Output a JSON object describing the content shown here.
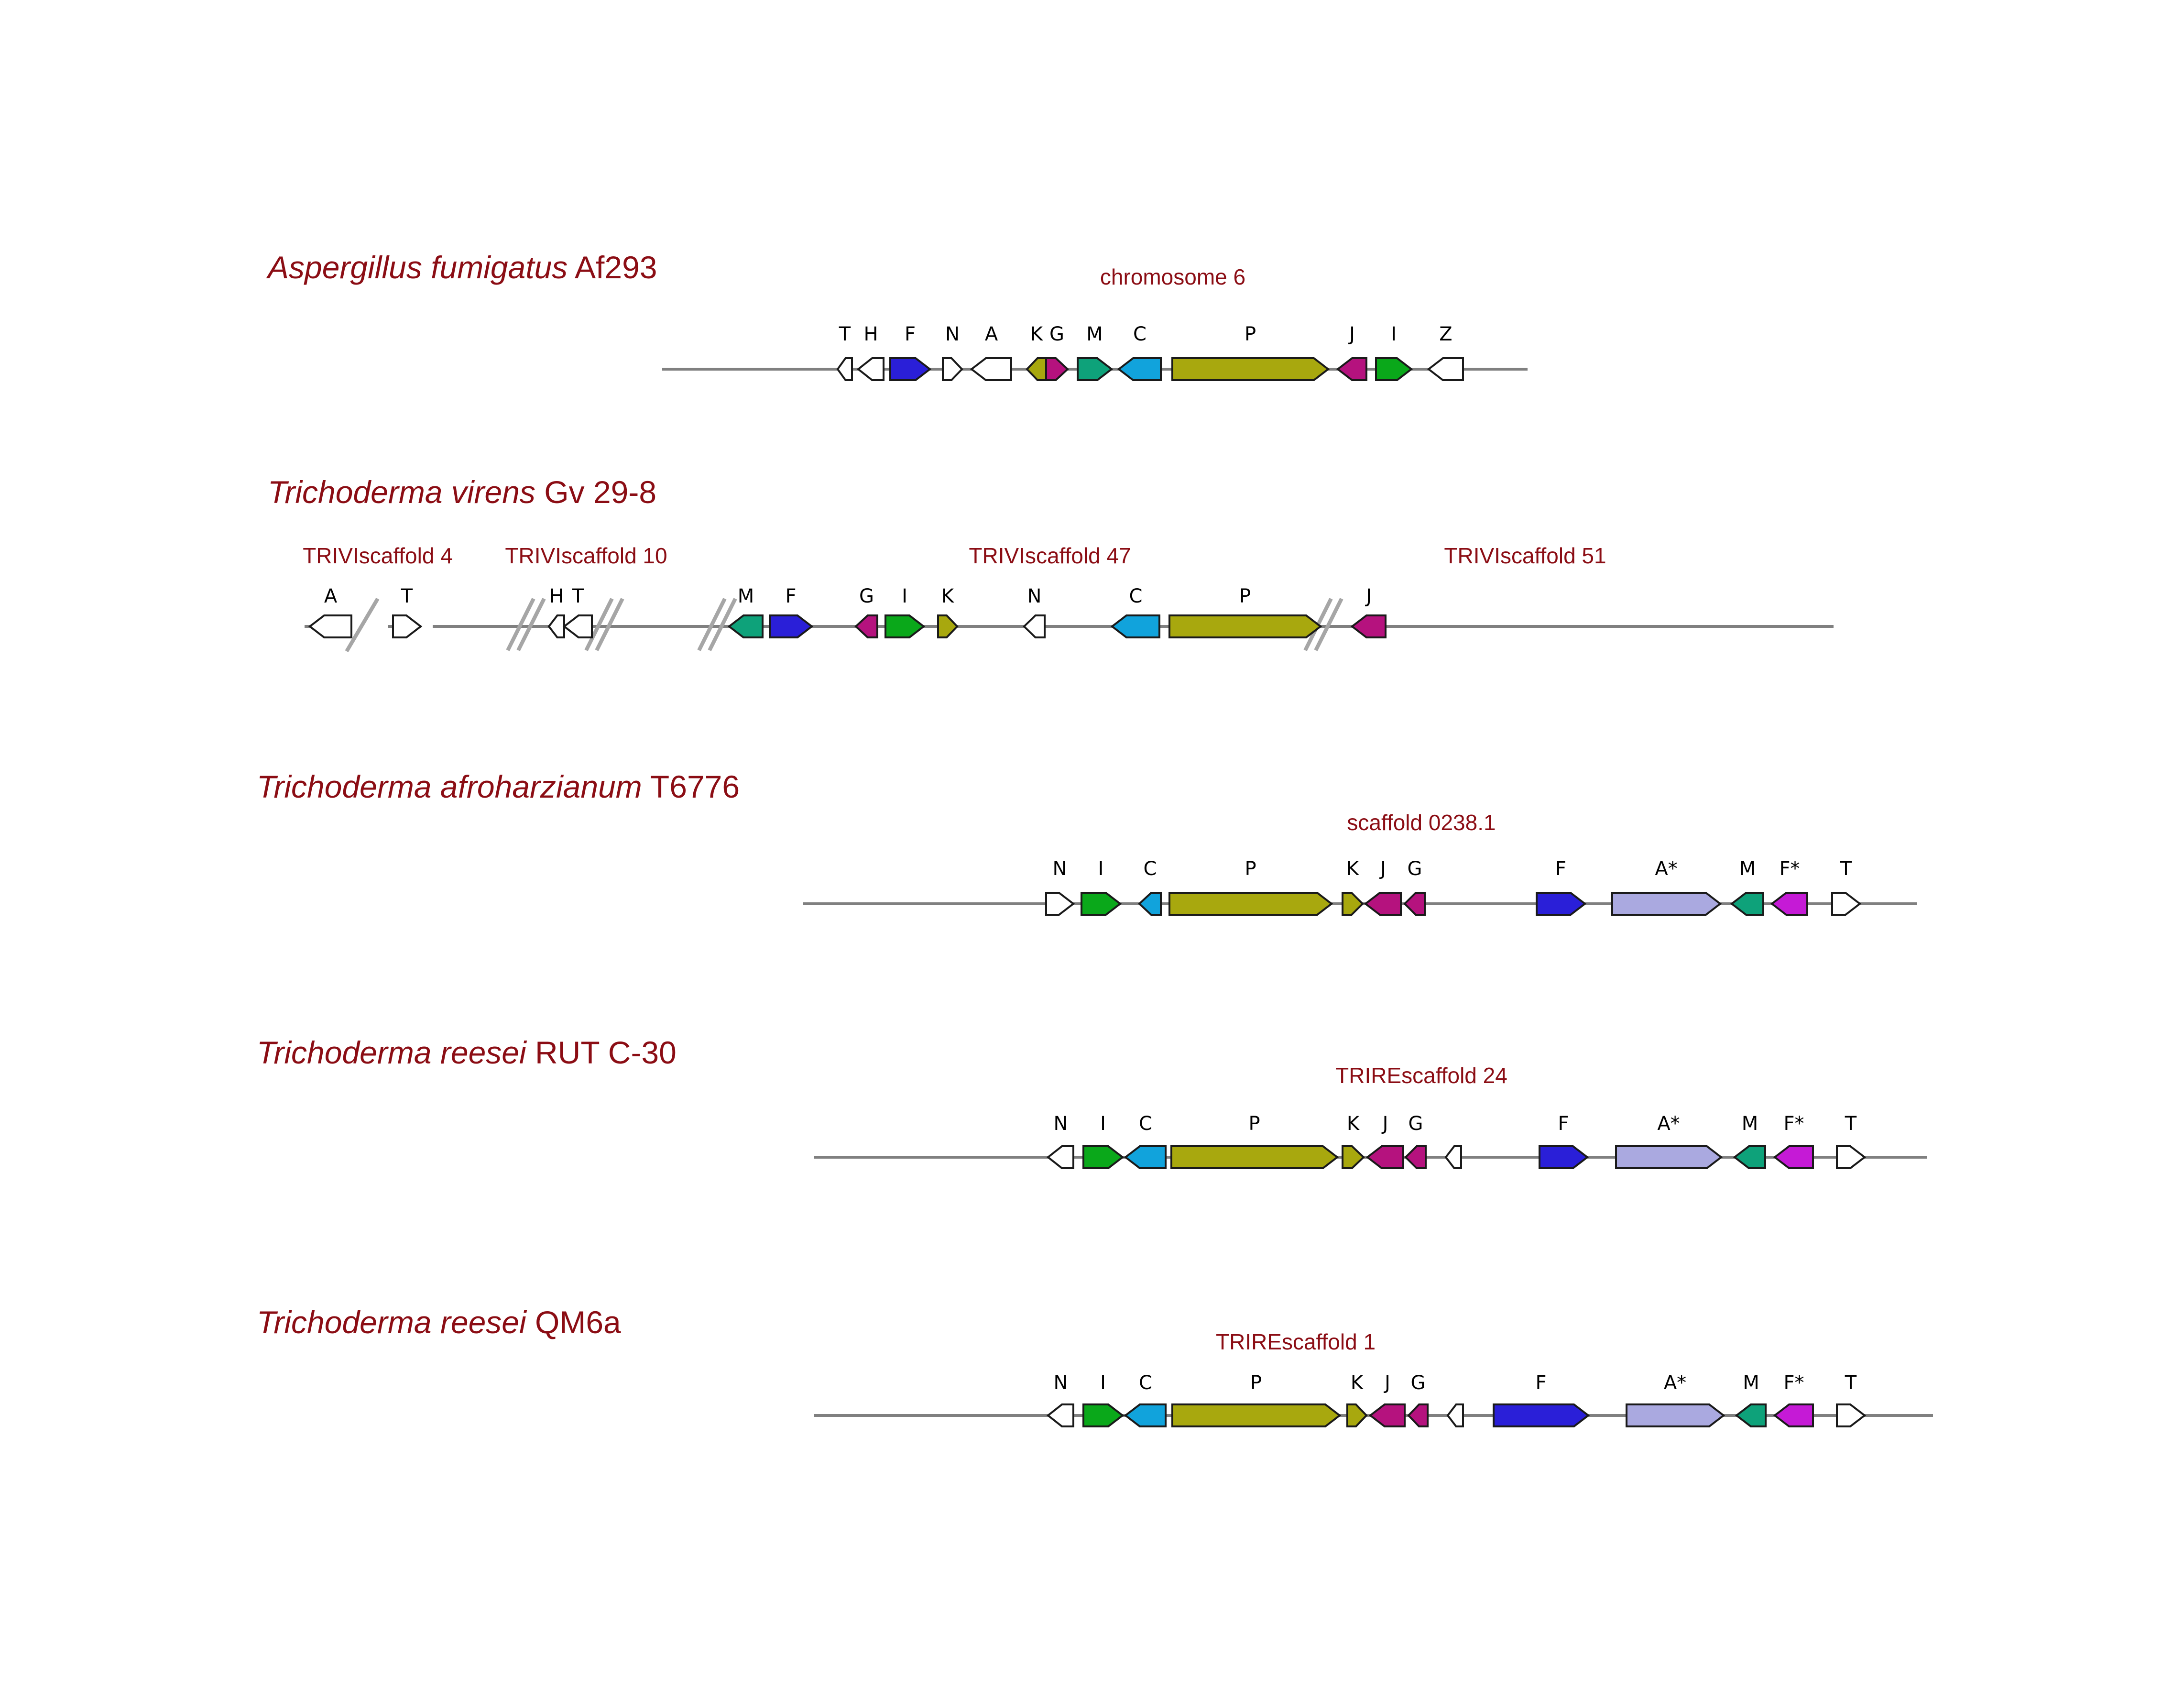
{
  "colors": {
    "white": "#ffffff",
    "blue": "#2a1fd8",
    "olive": "#a8a80e",
    "magenta": "#b5127e",
    "teal": "#0ea27a",
    "cyan": "#11a3dc",
    "green": "#0aa81a",
    "lavender": "#aaa9e0",
    "violet": "#c51ad6"
  },
  "tracks": [
    {
      "species_italic": "Aspergillus fumigatus",
      "species_strain": "Af293",
      "scaffolds": [
        "chromosome 6"
      ],
      "genes": [
        {
          "label": "T",
          "dir": "left",
          "color": "white"
        },
        {
          "label": "H",
          "dir": "left",
          "color": "white"
        },
        {
          "label": "F",
          "dir": "right",
          "color": "blue"
        },
        {
          "label": "N",
          "dir": "right",
          "color": "white"
        },
        {
          "label": "A",
          "dir": "left",
          "color": "white"
        },
        {
          "label": "K",
          "dir": "left",
          "color": "olive"
        },
        {
          "label": "G",
          "dir": "right",
          "color": "magenta"
        },
        {
          "label": "M",
          "dir": "right",
          "color": "teal"
        },
        {
          "label": "C",
          "dir": "left",
          "color": "cyan"
        },
        {
          "label": "P",
          "dir": "right",
          "color": "olive"
        },
        {
          "label": "J",
          "dir": "left",
          "color": "magenta"
        },
        {
          "label": "I",
          "dir": "right",
          "color": "green"
        },
        {
          "label": "Z",
          "dir": "left",
          "color": "white"
        }
      ]
    },
    {
      "species_italic": "Trichoderma virens",
      "species_strain": "Gv 29-8",
      "scaffolds": [
        "TRIVIscaffold 4",
        "TRIVIscaffold 10",
        "TRIVIscaffold 47",
        "TRIVIscaffold 51"
      ],
      "genes": [
        {
          "label": "A",
          "dir": "left",
          "color": "white"
        },
        {
          "label": "T",
          "dir": "right",
          "color": "white"
        },
        {
          "label": "H",
          "dir": "left",
          "color": "white"
        },
        {
          "label": "T",
          "dir": "left",
          "color": "white"
        },
        {
          "label": "M",
          "dir": "left",
          "color": "teal"
        },
        {
          "label": "F",
          "dir": "right",
          "color": "blue"
        },
        {
          "label": "G",
          "dir": "left",
          "color": "magenta"
        },
        {
          "label": "I",
          "dir": "right",
          "color": "green"
        },
        {
          "label": "K",
          "dir": "right",
          "color": "olive"
        },
        {
          "label": "N",
          "dir": "left",
          "color": "white"
        },
        {
          "label": "C",
          "dir": "left",
          "color": "cyan"
        },
        {
          "label": "P",
          "dir": "right",
          "color": "olive"
        },
        {
          "label": "J",
          "dir": "left",
          "color": "magenta"
        }
      ]
    },
    {
      "species_italic": "Trichoderma afroharzianum",
      "species_strain": "T6776",
      "scaffolds": [
        "scaffold 0238.1"
      ],
      "genes": [
        {
          "label": "N",
          "dir": "right",
          "color": "white"
        },
        {
          "label": "I",
          "dir": "right",
          "color": "green"
        },
        {
          "label": "C",
          "dir": "left",
          "color": "cyan"
        },
        {
          "label": "P",
          "dir": "right",
          "color": "olive"
        },
        {
          "label": "K",
          "dir": "right",
          "color": "olive"
        },
        {
          "label": "J",
          "dir": "left",
          "color": "magenta"
        },
        {
          "label": "G",
          "dir": "left",
          "color": "magenta"
        },
        {
          "label": "F",
          "dir": "right",
          "color": "blue"
        },
        {
          "label": "A*",
          "dir": "right",
          "color": "lavender"
        },
        {
          "label": "M",
          "dir": "left",
          "color": "teal"
        },
        {
          "label": "F*",
          "dir": "left",
          "color": "violet"
        },
        {
          "label": "T",
          "dir": "right",
          "color": "white"
        }
      ]
    },
    {
      "species_italic": "Trichoderma reesei",
      "species_strain": "RUT C-30",
      "scaffolds": [
        "TRIREscaffold 24"
      ],
      "genes": [
        {
          "label": "N",
          "dir": "left",
          "color": "white"
        },
        {
          "label": "I",
          "dir": "right",
          "color": "green"
        },
        {
          "label": "C",
          "dir": "left",
          "color": "cyan"
        },
        {
          "label": "P",
          "dir": "right",
          "color": "olive"
        },
        {
          "label": "K",
          "dir": "right",
          "color": "olive"
        },
        {
          "label": "J",
          "dir": "left",
          "color": "magenta"
        },
        {
          "label": "G",
          "dir": "left",
          "color": "magenta"
        },
        {
          "label": "",
          "dir": "left",
          "color": "white"
        },
        {
          "label": "F",
          "dir": "right",
          "color": "blue"
        },
        {
          "label": "A*",
          "dir": "right",
          "color": "lavender"
        },
        {
          "label": "M",
          "dir": "left",
          "color": "teal"
        },
        {
          "label": "F*",
          "dir": "left",
          "color": "violet"
        },
        {
          "label": "T",
          "dir": "right",
          "color": "white"
        }
      ]
    },
    {
      "species_italic": "Trichoderma reesei",
      "species_strain": "QM6a",
      "scaffolds": [
        "TRIREscaffold 1"
      ],
      "genes": [
        {
          "label": "N",
          "dir": "left",
          "color": "white"
        },
        {
          "label": "I",
          "dir": "right",
          "color": "green"
        },
        {
          "label": "C",
          "dir": "left",
          "color": "cyan"
        },
        {
          "label": "P",
          "dir": "right",
          "color": "olive"
        },
        {
          "label": "K",
          "dir": "right",
          "color": "olive"
        },
        {
          "label": "J",
          "dir": "left",
          "color": "magenta"
        },
        {
          "label": "G",
          "dir": "left",
          "color": "magenta"
        },
        {
          "label": "",
          "dir": "left",
          "color": "white"
        },
        {
          "label": "F",
          "dir": "right",
          "color": "blue"
        },
        {
          "label": "A*",
          "dir": "right",
          "color": "lavender"
        },
        {
          "label": "M",
          "dir": "left",
          "color": "teal"
        },
        {
          "label": "F*",
          "dir": "left",
          "color": "violet"
        },
        {
          "label": "T",
          "dir": "right",
          "color": "white"
        }
      ]
    }
  ]
}
